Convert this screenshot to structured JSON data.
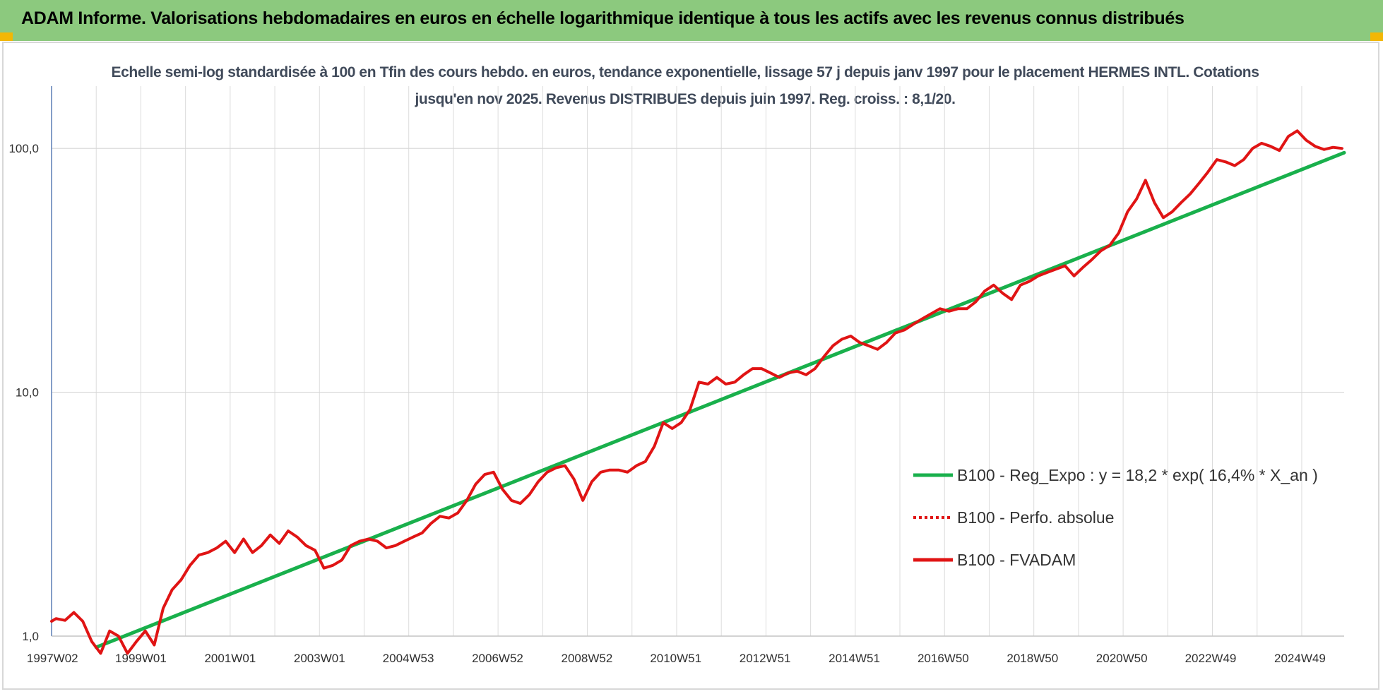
{
  "header": {
    "title": "ADAM Informe. Valorisations hebdomadaires en euros en échelle logarithmique identique à tous les actifs avec les revenus connus distribués"
  },
  "chart_data": {
    "type": "line",
    "title": "Echelle semi-log standardisée à 100 en Tfin des cours hebdo. en euros, tendance exponentielle, lissage 57 j depuis janv 1997 pour le placement HERMES INTL. Cotations jusqu'en nov 2025. Revenus DISTRIBUES depuis juin 1997. Reg. croiss. : 8,1/20.",
    "xlabel": "",
    "ylabel": "",
    "y_scale": "log",
    "ylim": [
      1,
      180
    ],
    "xlim": [
      1997.0,
      2025.95
    ],
    "y_ticks": [
      1,
      10,
      100
    ],
    "y_tick_labels": [
      "1,0",
      "10,0",
      "100,0"
    ],
    "x_ticks": [
      1997.02,
      1999.0,
      2001.0,
      2003.0,
      2004.99,
      2006.99,
      2008.99,
      2010.98,
      2012.98,
      2014.98,
      2016.97,
      2018.97,
      2020.97,
      2022.96,
      2024.96
    ],
    "x_tick_labels": [
      "1997W02",
      "1999W01",
      "2001W01",
      "2003W01",
      "2004W53",
      "2006W52",
      "2008W52",
      "2010W51",
      "2012W51",
      "2014W51",
      "2016W50",
      "2018W50",
      "2020W50",
      "2022W49",
      "2024W49"
    ],
    "grid": true,
    "legend_position": "right",
    "series": [
      {
        "name": "B100 - Reg_Expo : y = 18,2 * exp( 16,4% *  X_an )",
        "color": "#19b04c",
        "style": "solid",
        "x": [
          1998.0,
          2025.95
        ],
        "y": [
          0.9,
          96
        ]
      },
      {
        "name": "B100 - Perfo. absolue",
        "color": "#e01414",
        "style": "dotted",
        "x": [],
        "y": []
      },
      {
        "name": "B100 - FVADAM",
        "color": "#e01414",
        "style": "solid",
        "x": [
          1997.0,
          1997.1,
          1997.3,
          1997.5,
          1997.7,
          1997.9,
          1998.1,
          1998.3,
          1998.5,
          1998.7,
          1998.9,
          1999.1,
          1999.3,
          1999.5,
          1999.7,
          1999.9,
          2000.1,
          2000.3,
          2000.5,
          2000.7,
          2000.9,
          2001.1,
          2001.3,
          2001.5,
          2001.7,
          2001.9,
          2002.1,
          2002.3,
          2002.5,
          2002.7,
          2002.9,
          2003.1,
          2003.3,
          2003.5,
          2003.7,
          2003.9,
          2004.1,
          2004.3,
          2004.5,
          2004.7,
          2004.9,
          2005.1,
          2005.3,
          2005.5,
          2005.7,
          2005.9,
          2006.1,
          2006.3,
          2006.5,
          2006.7,
          2006.9,
          2007.1,
          2007.3,
          2007.5,
          2007.7,
          2007.9,
          2008.1,
          2008.3,
          2008.5,
          2008.7,
          2008.9,
          2009.1,
          2009.3,
          2009.5,
          2009.7,
          2009.9,
          2010.1,
          2010.3,
          2010.5,
          2010.7,
          2010.9,
          2011.1,
          2011.3,
          2011.5,
          2011.7,
          2011.9,
          2012.1,
          2012.3,
          2012.5,
          2012.7,
          2012.9,
          2013.1,
          2013.3,
          2013.5,
          2013.7,
          2013.9,
          2014.1,
          2014.3,
          2014.5,
          2014.7,
          2014.9,
          2015.1,
          2015.3,
          2015.5,
          2015.7,
          2015.9,
          2016.1,
          2016.3,
          2016.5,
          2016.7,
          2016.9,
          2017.1,
          2017.3,
          2017.5,
          2017.7,
          2017.9,
          2018.1,
          2018.3,
          2018.5,
          2018.7,
          2018.9,
          2019.1,
          2019.3,
          2019.5,
          2019.7,
          2019.9,
          2020.1,
          2020.3,
          2020.5,
          2020.7,
          2020.9,
          2021.1,
          2021.3,
          2021.5,
          2021.7,
          2021.9,
          2022.1,
          2022.3,
          2022.5,
          2022.7,
          2022.9,
          2023.1,
          2023.3,
          2023.5,
          2023.7,
          2023.9,
          2024.1,
          2024.3,
          2024.5,
          2024.7,
          2024.9,
          2025.1,
          2025.3,
          2025.5,
          2025.7,
          2025.9
        ],
        "y": [
          1.15,
          1.18,
          1.16,
          1.25,
          1.15,
          0.95,
          0.85,
          1.05,
          1.0,
          0.85,
          0.95,
          1.05,
          0.92,
          1.3,
          1.55,
          1.7,
          1.95,
          2.15,
          2.2,
          2.3,
          2.45,
          2.2,
          2.5,
          2.2,
          2.35,
          2.6,
          2.4,
          2.7,
          2.55,
          2.35,
          2.25,
          1.9,
          1.95,
          2.05,
          2.35,
          2.45,
          2.5,
          2.45,
          2.3,
          2.35,
          2.45,
          2.55,
          2.65,
          2.9,
          3.1,
          3.05,
          3.2,
          3.6,
          4.2,
          4.6,
          4.7,
          4.0,
          3.6,
          3.5,
          3.8,
          4.3,
          4.7,
          4.9,
          5.0,
          4.4,
          3.6,
          4.3,
          4.7,
          4.8,
          4.8,
          4.7,
          5.0,
          5.2,
          6.0,
          7.5,
          7.1,
          7.5,
          8.5,
          11.0,
          10.8,
          11.5,
          10.8,
          11.0,
          11.8,
          12.5,
          12.5,
          12.0,
          11.5,
          12.0,
          12.2,
          11.8,
          12.5,
          14.0,
          15.5,
          16.5,
          17.0,
          16.0,
          15.5,
          15.0,
          16.0,
          17.5,
          18.0,
          19.0,
          20.0,
          21.0,
          22.0,
          21.5,
          22.0,
          22.0,
          23.5,
          26.0,
          27.5,
          25.5,
          24.0,
          27.5,
          28.5,
          30.0,
          31.0,
          32.0,
          33.0,
          30.0,
          32.5,
          35.0,
          38.0,
          40.0,
          45.0,
          55.0,
          62.0,
          74.0,
          60.0,
          52.0,
          55.0,
          60.0,
          65.0,
          72.0,
          80.0,
          90.0,
          88.0,
          85.0,
          90.0,
          100.0,
          105.0,
          102.0,
          98.0,
          112.0,
          118.0,
          108.0,
          102.0,
          99.0,
          101.0,
          100.0
        ]
      }
    ]
  }
}
